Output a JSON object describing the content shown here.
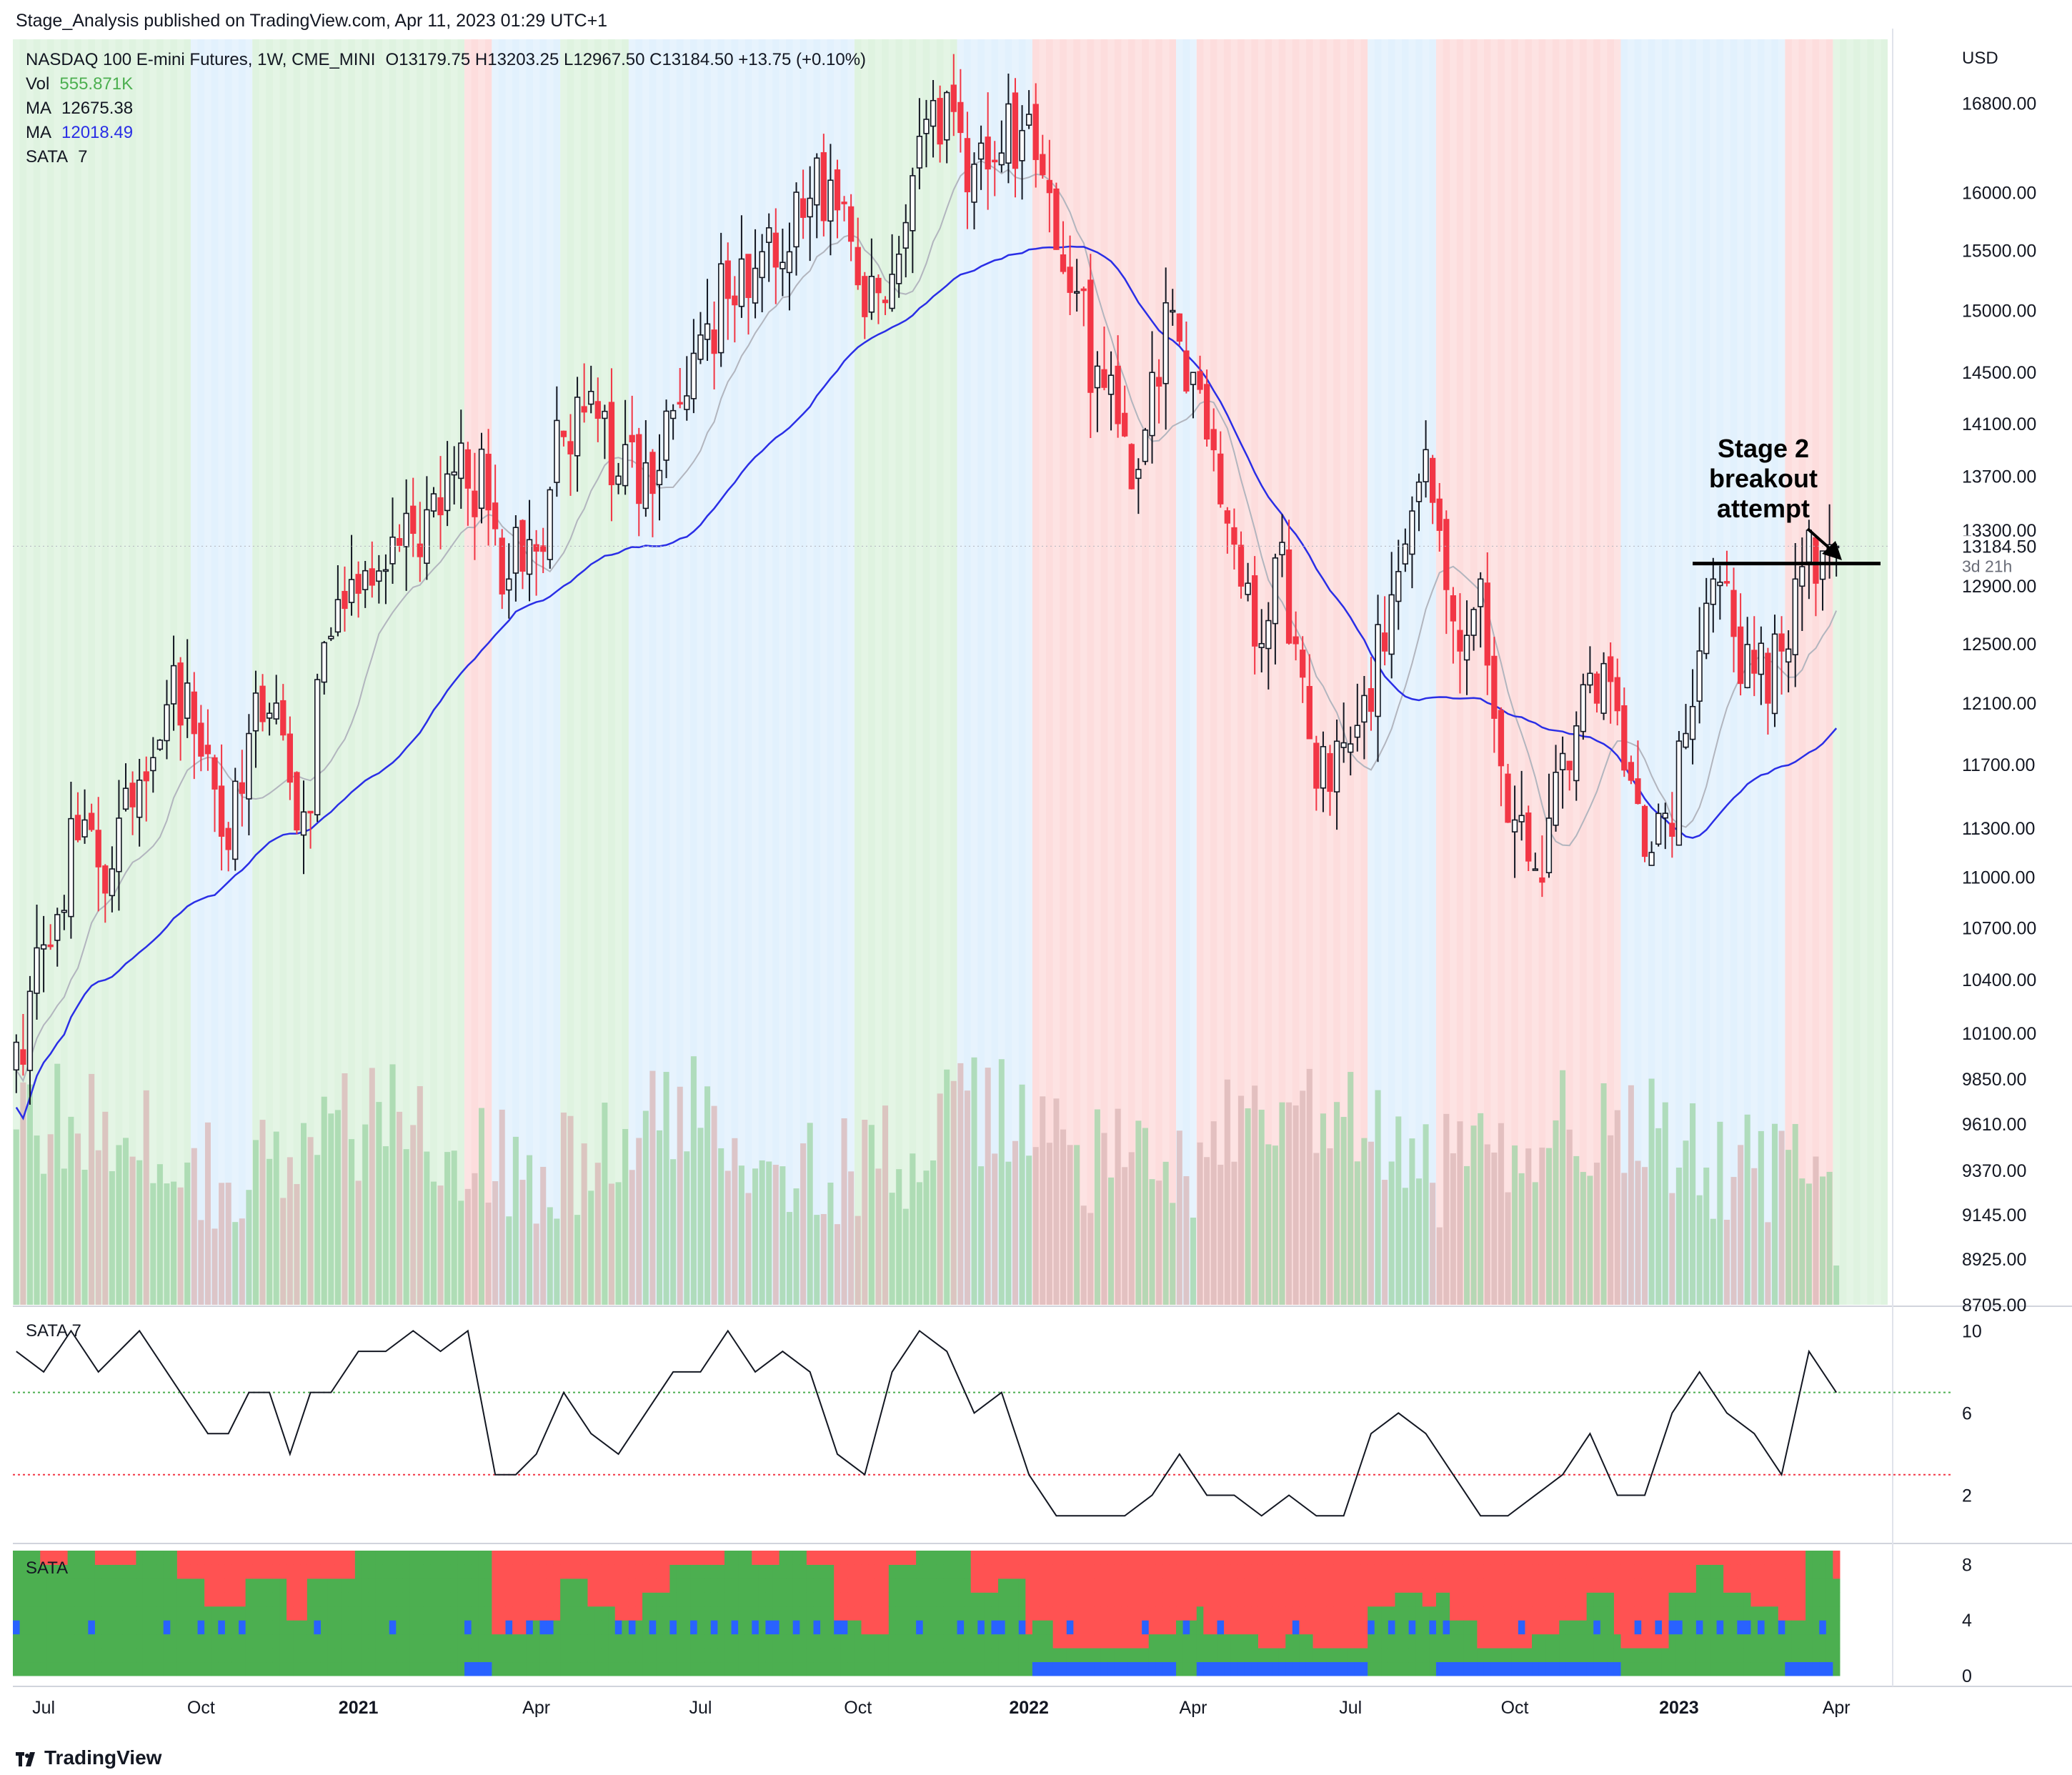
{
  "header": {
    "publisher_line": "Stage_Analysis published on TradingView.com, Apr 11, 2023 01:29 UTC+1"
  },
  "legend": {
    "symbol": "NASDAQ 100 E-mini Futures, 1W, CME_MINI",
    "ohlc": "O13179.75  H13203.25  L12967.50  C13184.50  +13.75 (+0.10%)",
    "vol_label": "Vol",
    "vol_value": "555.871K",
    "ma1_label": "MA",
    "ma1_value": "12675.38",
    "ma2_label": "MA",
    "ma2_value": "12018.49",
    "sata_label": "SATA",
    "sata_value": "7"
  },
  "colors": {
    "up": "#ffffff",
    "down": "#f23645",
    "ma_fast": "#b2b5be",
    "ma_slow": "#2a2ee6",
    "bg_stage1": "#dbeefd",
    "bg_stage2": "#d7f0d8",
    "bg_stage4": "#fdd5d5",
    "sata_green": "#4caf50",
    "sata_red": "#ff5252",
    "sata_blue": "#2962ff",
    "vol_green": "#9ed4a6",
    "vol_red": "#d9b5b5"
  },
  "price_axis": {
    "currency": "USD",
    "ticks": [
      "16800.00",
      "16000.00",
      "15500.00",
      "15000.00",
      "14500.00",
      "14100.00",
      "13700.00",
      "13300.00",
      "12900.00",
      "12500.00",
      "12100.00",
      "11700.00",
      "11300.00",
      "11000.00",
      "10700.00",
      "10400.00",
      "10100.00",
      "9850.00",
      "9610.00",
      "9370.00",
      "9145.00",
      "8925.00",
      "8705.00"
    ],
    "last_price": "13184.50",
    "countdown": "3d 21h"
  },
  "annotation": {
    "line1": "Stage 2",
    "line2": "breakout",
    "line3": "attempt"
  },
  "sata_panel": {
    "label": "SATA 7",
    "ticks": [
      "10",
      "6",
      "2"
    ]
  },
  "bars_panel": {
    "label": "SATA",
    "ticks": [
      "8",
      "4",
      "0"
    ]
  },
  "time_axis": {
    "labels": [
      "Jul",
      "Oct",
      "2021",
      "Apr",
      "Jul",
      "Oct",
      "2022",
      "Apr",
      "Jul",
      "Oct",
      "2023",
      "Apr"
    ],
    "bold": [
      false,
      false,
      true,
      false,
      false,
      false,
      true,
      false,
      false,
      false,
      true,
      false
    ],
    "bar_index": [
      4,
      27,
      50,
      76,
      100,
      123,
      148,
      172,
      195,
      219,
      243,
      266
    ]
  },
  "footer": {
    "brand": "TradingView"
  },
  "chart_data": {
    "type": "candlestick",
    "interval": "1W",
    "title": "NASDAQ 100 E-mini Futures, 1W, CME_MINI",
    "y_scale": "log",
    "ylim": [
      8705,
      17400
    ],
    "x_range": [
      "2020-06",
      "2023-04"
    ],
    "bar_count": 274,
    "anchors": [
      {
        "i": 0,
        "close": 10050
      },
      {
        "i": 4,
        "close": 10600
      },
      {
        "i": 10,
        "close": 11350
      },
      {
        "i": 14,
        "close": 11050
      },
      {
        "i": 18,
        "close": 11600
      },
      {
        "i": 23,
        "close": 12350
      },
      {
        "i": 26,
        "close": 11900
      },
      {
        "i": 30,
        "close": 11250
      },
      {
        "i": 34,
        "close": 11900
      },
      {
        "i": 38,
        "close": 12100
      },
      {
        "i": 42,
        "close": 11400
      },
      {
        "i": 46,
        "close": 12550
      },
      {
        "i": 50,
        "close": 12850
      },
      {
        "i": 55,
        "close": 13250
      },
      {
        "i": 60,
        "close": 13450
      },
      {
        "i": 65,
        "close": 13950
      },
      {
        "i": 69,
        "close": 13450
      },
      {
        "i": 72,
        "close": 12950
      },
      {
        "i": 76,
        "close": 13150
      },
      {
        "i": 80,
        "close": 14000
      },
      {
        "i": 84,
        "close": 14350
      },
      {
        "i": 88,
        "close": 13700
      },
      {
        "i": 92,
        "close": 13800
      },
      {
        "i": 96,
        "close": 14200
      },
      {
        "i": 100,
        "close": 14800
      },
      {
        "i": 104,
        "close": 15100
      },
      {
        "i": 108,
        "close": 15350
      },
      {
        "i": 112,
        "close": 15400
      },
      {
        "i": 116,
        "close": 15950
      },
      {
        "i": 120,
        "close": 15850
      },
      {
        "i": 124,
        "close": 14950
      },
      {
        "i": 128,
        "close": 15300
      },
      {
        "i": 132,
        "close": 16500
      },
      {
        "i": 136,
        "close": 16900
      },
      {
        "i": 140,
        "close": 16250
      },
      {
        "i": 144,
        "close": 16350
      },
      {
        "i": 148,
        "close": 16700
      },
      {
        "i": 151,
        "close": 16000
      },
      {
        "i": 154,
        "close": 15150
      },
      {
        "i": 158,
        "close": 14550
      },
      {
        "i": 161,
        "close": 14100
      },
      {
        "i": 164,
        "close": 13750
      },
      {
        "i": 166,
        "close": 14500
      },
      {
        "i": 169,
        "close": 15000
      },
      {
        "i": 172,
        "close": 14500
      },
      {
        "i": 175,
        "close": 13900
      },
      {
        "i": 178,
        "close": 13200
      },
      {
        "i": 182,
        "close": 12500
      },
      {
        "i": 184,
        "close": 13100
      },
      {
        "i": 187,
        "close": 12500
      },
      {
        "i": 190,
        "close": 11550
      },
      {
        "i": 193,
        "close": 11850
      },
      {
        "i": 197,
        "close": 12150
      },
      {
        "i": 200,
        "close": 12450
      },
      {
        "i": 203,
        "close": 13200
      },
      {
        "i": 206,
        "close": 13900
      },
      {
        "i": 208,
        "close": 13300
      },
      {
        "i": 211,
        "close": 12450
      },
      {
        "i": 214,
        "close": 12950
      },
      {
        "i": 216,
        "close": 12000
      },
      {
        "i": 219,
        "close": 11350
      },
      {
        "i": 222,
        "close": 11050
      },
      {
        "i": 225,
        "close": 11650
      },
      {
        "i": 228,
        "close": 11950
      },
      {
        "i": 231,
        "close": 12100
      },
      {
        "i": 234,
        "close": 12050
      },
      {
        "i": 236,
        "close": 11600
      },
      {
        "i": 239,
        "close": 11150
      },
      {
        "i": 242,
        "close": 11250
      },
      {
        "i": 244,
        "close": 11900
      },
      {
        "i": 246,
        "close": 12450
      },
      {
        "i": 248,
        "close": 12950
      },
      {
        "i": 251,
        "close": 12550
      },
      {
        "i": 254,
        "close": 12300
      },
      {
        "i": 256,
        "close": 12100
      },
      {
        "i": 258,
        "close": 12450
      },
      {
        "i": 260,
        "close": 12950
      },
      {
        "i": 262,
        "close": 13300
      },
      {
        "i": 264,
        "close": 13150
      },
      {
        "i": 266,
        "close": 13184.5
      }
    ],
    "last_bar": {
      "open": 13179.75,
      "high": 13203.25,
      "low": 12967.5,
      "close": 13184.5,
      "change": 13.75,
      "change_pct": 0.1
    },
    "ma_fast_last": 12675.38,
    "ma_slow_last": 12018.49,
    "volume_last": "555.871K",
    "resistance_level": 13060,
    "sata_line": {
      "ylim": [
        0,
        10.5
      ],
      "upper_ref": 7,
      "lower_ref": 3,
      "points": [
        [
          0,
          9
        ],
        [
          4,
          8
        ],
        [
          8,
          10
        ],
        [
          12,
          8
        ],
        [
          18,
          10
        ],
        [
          24,
          7
        ],
        [
          28,
          5
        ],
        [
          31,
          5
        ],
        [
          34,
          7
        ],
        [
          37,
          7
        ],
        [
          40,
          4
        ],
        [
          43,
          7
        ],
        [
          46,
          7
        ],
        [
          50,
          9
        ],
        [
          54,
          9
        ],
        [
          58,
          10
        ],
        [
          62,
          9
        ],
        [
          66,
          10
        ],
        [
          70,
          3
        ],
        [
          73,
          3
        ],
        [
          76,
          4
        ],
        [
          80,
          7
        ],
        [
          84,
          5
        ],
        [
          88,
          4
        ],
        [
          92,
          6
        ],
        [
          96,
          8
        ],
        [
          100,
          8
        ],
        [
          104,
          10
        ],
        [
          108,
          8
        ],
        [
          112,
          9
        ],
        [
          116,
          8
        ],
        [
          120,
          4
        ],
        [
          124,
          3
        ],
        [
          128,
          8
        ],
        [
          132,
          10
        ],
        [
          136,
          9
        ],
        [
          140,
          6
        ],
        [
          144,
          7
        ],
        [
          148,
          3
        ],
        [
          152,
          1
        ],
        [
          156,
          1
        ],
        [
          162,
          1
        ],
        [
          166,
          2
        ],
        [
          170,
          4
        ],
        [
          174,
          2
        ],
        [
          178,
          2
        ],
        [
          182,
          1
        ],
        [
          186,
          2
        ],
        [
          190,
          1
        ],
        [
          194,
          1
        ],
        [
          198,
          5
        ],
        [
          202,
          6
        ],
        [
          206,
          5
        ],
        [
          210,
          3
        ],
        [
          214,
          1
        ],
        [
          218,
          1
        ],
        [
          222,
          2
        ],
        [
          226,
          3
        ],
        [
          230,
          5
        ],
        [
          234,
          2
        ],
        [
          238,
          2
        ],
        [
          242,
          6
        ],
        [
          246,
          8
        ],
        [
          250,
          6
        ],
        [
          254,
          5
        ],
        [
          258,
          3
        ],
        [
          262,
          9
        ],
        [
          266,
          7
        ]
      ]
    },
    "stage_bands": [
      {
        "from": 0,
        "to": 26,
        "stage": 2
      },
      {
        "from": 26,
        "to": 35,
        "stage": 1
      },
      {
        "from": 35,
        "to": 66,
        "stage": 2
      },
      {
        "from": 66,
        "to": 70,
        "stage": 4
      },
      {
        "from": 70,
        "to": 80,
        "stage": 1
      },
      {
        "from": 80,
        "to": 90,
        "stage": 2
      },
      {
        "from": 90,
        "to": 123,
        "stage": 1
      },
      {
        "from": 123,
        "to": 138,
        "stage": 2
      },
      {
        "from": 138,
        "to": 149,
        "stage": 1
      },
      {
        "from": 149,
        "to": 170,
        "stage": 4
      },
      {
        "from": 170,
        "to": 173,
        "stage": 1
      },
      {
        "from": 173,
        "to": 198,
        "stage": 4
      },
      {
        "from": 198,
        "to": 208,
        "stage": 1
      },
      {
        "from": 208,
        "to": 235,
        "stage": 4
      },
      {
        "from": 235,
        "to": 245,
        "stage": 1
      },
      {
        "from": 245,
        "to": 259,
        "stage": 1
      },
      {
        "from": 259,
        "to": 266,
        "stage": 4
      },
      {
        "from": 266,
        "to": 274,
        "stage": 2
      }
    ]
  }
}
